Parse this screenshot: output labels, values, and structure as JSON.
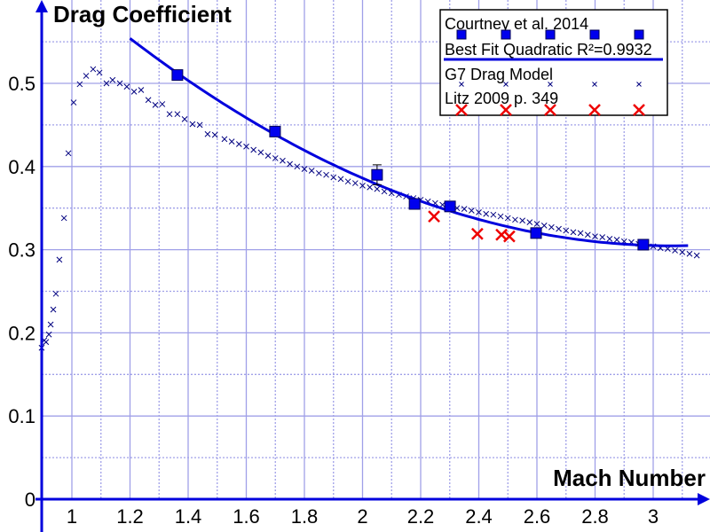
{
  "chart_data": {
    "type": "scatter",
    "title": "",
    "ylabel": "Drag Coefficient",
    "xlabel": "Mach Number",
    "xlim": [
      0.9,
      3.195
    ],
    "ylim": [
      0,
      0.6
    ],
    "grid": true,
    "legend_position": "top-right",
    "x_ticks": [
      "1",
      "1.2",
      "1.4",
      "1.6",
      "1.8",
      "2",
      "2.2",
      "2.4",
      "2.6",
      "2.8",
      "3"
    ],
    "y_ticks": [
      "0",
      "0.1",
      "0.2",
      "0.3",
      "0.4",
      "0.5"
    ],
    "colors": {
      "axis": "#0000dd",
      "fit": "#0000dd",
      "courtney": "#0000ee",
      "g7": "#000080",
      "litz": "#ee0000",
      "grid": "#a0a0e8"
    },
    "series": [
      {
        "name": "Courtney et al. 2014",
        "marker": "square",
        "x": [
          1.363,
          1.699,
          2.05,
          2.179,
          2.301,
          2.597,
          2.966
        ],
        "y": [
          0.51,
          0.442,
          0.39,
          0.355,
          0.352,
          0.32,
          0.306
        ],
        "yerr": [
          0,
          0,
          0.012,
          0,
          0,
          0,
          0
        ]
      },
      {
        "name": "Best Fit Quadratic R²=0.9932",
        "marker": "line",
        "form": "y = c + b(x-2) + a(x-2)^2",
        "a": 0.0717,
        "b": -0.1527,
        "c": 0.386,
        "x_range": [
          1.2,
          3.12
        ]
      },
      {
        "name": "G7 Drag Model",
        "marker": "x-small",
        "x": [
          0.896,
          0.905,
          0.911,
          0.921,
          0.927,
          0.936,
          0.945,
          0.957,
          0.973,
          0.988,
          1.006,
          1.027,
          1.049,
          1.073,
          1.095,
          1.119,
          1.14,
          1.165,
          1.189,
          1.214,
          1.238,
          1.263,
          1.287,
          1.311,
          1.336,
          1.363,
          1.388,
          1.415,
          1.44,
          1.467,
          1.492,
          1.525,
          1.55,
          1.575,
          1.6,
          1.625,
          1.65,
          1.675,
          1.7,
          1.725,
          1.75,
          1.775,
          1.8,
          1.825,
          1.85,
          1.875,
          1.9,
          1.925,
          1.95,
          1.975,
          2.0,
          2.025,
          2.05,
          2.075,
          2.1,
          2.125,
          2.15,
          2.175,
          2.2,
          2.225,
          2.25,
          2.275,
          2.3,
          2.325,
          2.35,
          2.375,
          2.4,
          2.425,
          2.45,
          2.475,
          2.5,
          2.525,
          2.55,
          2.575,
          2.6,
          2.625,
          2.65,
          2.675,
          2.7,
          2.725,
          2.75,
          2.775,
          2.8,
          2.825,
          2.85,
          2.875,
          2.9,
          2.925,
          2.95,
          2.975,
          3.0,
          3.025,
          3.05,
          3.075,
          3.1,
          3.125,
          3.15
        ],
        "y": [
          0.182,
          0.191,
          0.189,
          0.198,
          0.21,
          0.228,
          0.247,
          0.288,
          0.338,
          0.416,
          0.477,
          0.499,
          0.509,
          0.517,
          0.513,
          0.5,
          0.504,
          0.5,
          0.496,
          0.49,
          0.492,
          0.48,
          0.474,
          0.475,
          0.463,
          0.463,
          0.457,
          0.451,
          0.45,
          0.439,
          0.438,
          0.433,
          0.43,
          0.427,
          0.424,
          0.42,
          0.417,
          0.413,
          0.41,
          0.407,
          0.403,
          0.4,
          0.397,
          0.395,
          0.392,
          0.39,
          0.387,
          0.385,
          0.382,
          0.38,
          0.377,
          0.375,
          0.373,
          0.37,
          0.368,
          0.366,
          0.364,
          0.362,
          0.36,
          0.358,
          0.356,
          0.354,
          0.352,
          0.35,
          0.349,
          0.347,
          0.345,
          0.343,
          0.342,
          0.34,
          0.338,
          0.336,
          0.335,
          0.333,
          0.331,
          0.329,
          0.327,
          0.325,
          0.323,
          0.321,
          0.32,
          0.318,
          0.316,
          0.315,
          0.313,
          0.312,
          0.31,
          0.309,
          0.307,
          0.306,
          0.304,
          0.302,
          0.301,
          0.299,
          0.297,
          0.295,
          0.293
        ]
      },
      {
        "name": "Litz 2009 p. 349",
        "marker": "x-large",
        "x": [
          2.246,
          2.395,
          2.478,
          2.505
        ],
        "y": [
          0.34,
          0.319,
          0.318,
          0.316
        ]
      }
    ]
  }
}
